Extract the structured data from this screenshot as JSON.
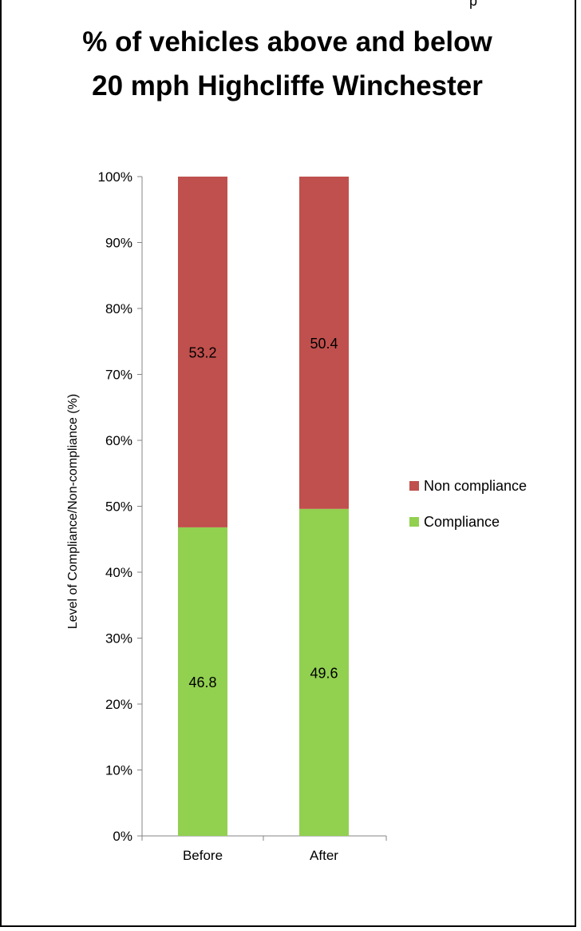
{
  "header_snippet": "p",
  "chart_data": {
    "type": "bar",
    "stacked": true,
    "title": "% of vehicles above and below 20 mph Highcliffe  Winchester",
    "title_lines": [
      "% of vehicles above and below",
      "20 mph Highcliffe  Winchester"
    ],
    "categories": [
      "Before",
      "After"
    ],
    "series": [
      {
        "name": "Compliance",
        "values": [
          46.8,
          49.6
        ],
        "color": "#92d050",
        "labels": [
          "46.8",
          "49.6"
        ]
      },
      {
        "name": "Non compliance",
        "values": [
          53.2,
          50.4
        ],
        "color": "#c0504d",
        "labels": [
          "53.2",
          "50.4"
        ]
      }
    ],
    "xlabel": "",
    "ylabel": "Level of Compliance/Non-compliance (%)",
    "ylim": [
      0,
      100
    ],
    "yticks": [
      "0%",
      "10%",
      "20%",
      "30%",
      "40%",
      "50%",
      "60%",
      "70%",
      "80%",
      "90%",
      "100%"
    ],
    "ytick_values": [
      0,
      10,
      20,
      30,
      40,
      50,
      60,
      70,
      80,
      90,
      100
    ],
    "grid": false,
    "legend_placement": "right",
    "legend_order": [
      "Non compliance",
      "Compliance"
    ]
  }
}
